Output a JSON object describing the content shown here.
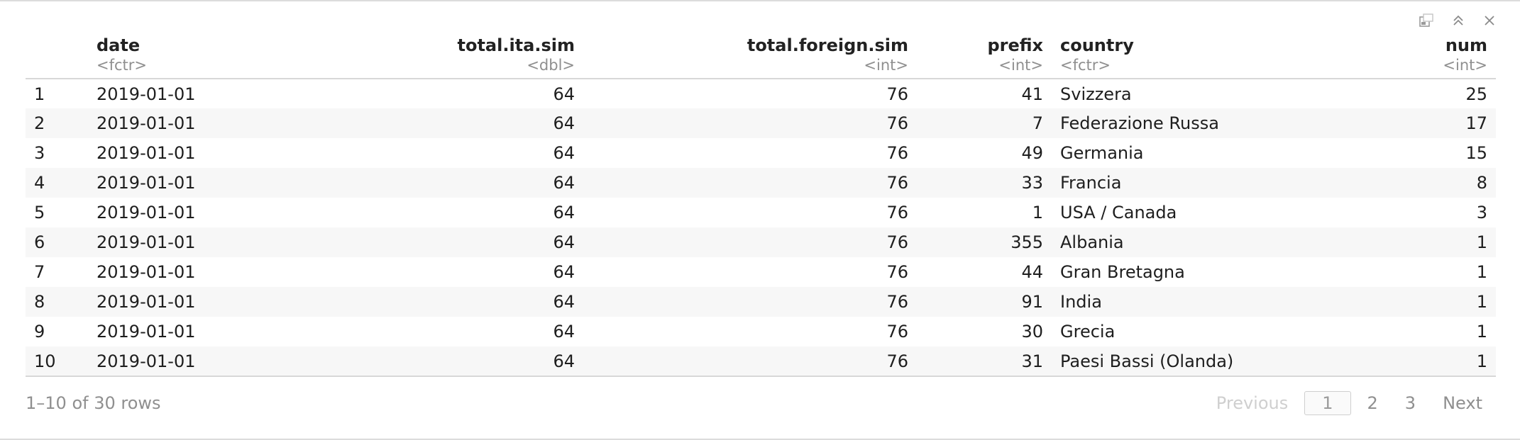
{
  "toolbar": {
    "icons": [
      "copy-icon",
      "collapse-up-icon",
      "close-icon"
    ]
  },
  "columns": [
    {
      "name": "",
      "type": ""
    },
    {
      "name": "date",
      "type": "<fctr>"
    },
    {
      "name": "total.ita.sim",
      "type": "<dbl>"
    },
    {
      "name": "total.foreign.sim",
      "type": "<int>"
    },
    {
      "name": "prefix",
      "type": "<int>"
    },
    {
      "name": "country",
      "type": "<fctr>"
    },
    {
      "name": "num",
      "type": "<int>"
    }
  ],
  "rows": [
    [
      "1",
      "2019-01-01",
      "64",
      "76",
      "41",
      "Svizzera",
      "25"
    ],
    [
      "2",
      "2019-01-01",
      "64",
      "76",
      "7",
      "Federazione Russa",
      "17"
    ],
    [
      "3",
      "2019-01-01",
      "64",
      "76",
      "49",
      "Germania",
      "15"
    ],
    [
      "4",
      "2019-01-01",
      "64",
      "76",
      "33",
      "Francia",
      "8"
    ],
    [
      "5",
      "2019-01-01",
      "64",
      "76",
      "1",
      "USA / Canada",
      "3"
    ],
    [
      "6",
      "2019-01-01",
      "64",
      "76",
      "355",
      "Albania",
      "1"
    ],
    [
      "7",
      "2019-01-01",
      "64",
      "76",
      "44",
      "Gran Bretagna",
      "1"
    ],
    [
      "8",
      "2019-01-01",
      "64",
      "76",
      "91",
      "India",
      "1"
    ],
    [
      "9",
      "2019-01-01",
      "64",
      "76",
      "30",
      "Grecia",
      "1"
    ],
    [
      "10",
      "2019-01-01",
      "64",
      "76",
      "31",
      "Paesi Bassi (Olanda)",
      "1"
    ]
  ],
  "pagination": {
    "row_info": "1–10 of 30 rows",
    "previous": "Previous",
    "pages": [
      "1",
      "2",
      "3"
    ],
    "current_page": "1",
    "next": "Next"
  }
}
